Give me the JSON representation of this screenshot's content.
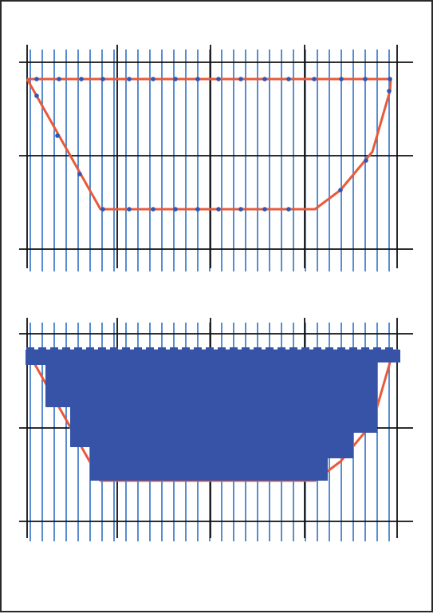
{
  "colors": {
    "frame": "#2a2a2a",
    "grid_major": "#111111",
    "grid_minor": "#2f6fc4",
    "outline": "#e85a3a",
    "sample_point": "#2f56b4",
    "fill": "#3653a8"
  },
  "panels": [
    {
      "name": "top-panel",
      "mode": "sampled-outline"
    },
    {
      "name": "bottom-panel",
      "mode": "rasterized-fill"
    }
  ]
}
